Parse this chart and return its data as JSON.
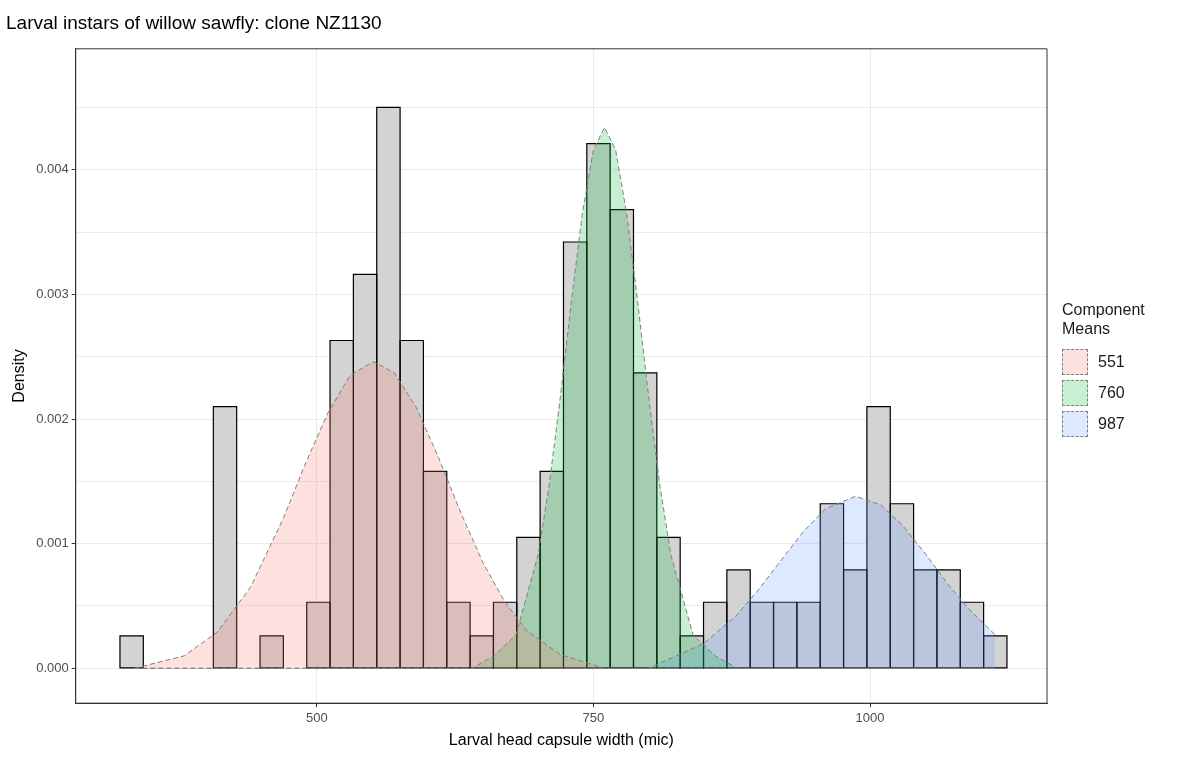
{
  "chart_data": {
    "type": "histogram",
    "title": "Larval instars of willow sawfly: clone NZ1130",
    "xlabel": "Larval head capsule width (mic)",
    "ylabel": "Density",
    "legend_title": "Component Means",
    "bins": [
      322,
      343.1,
      364.2,
      385.3,
      406.4,
      427.5,
      448.6,
      469.7,
      490.8,
      511.9,
      533,
      554.1,
      575.2,
      596.3,
      617.4,
      638.5,
      659.6,
      680.7,
      701.8,
      722.9,
      744,
      765.1,
      786.2,
      807.3,
      828.4,
      849.5,
      870.6,
      891.7,
      912.8,
      933.9,
      955,
      976.1,
      997.2,
      1018.3,
      1039.4,
      1060.5,
      1081.6,
      1102.7,
      1123.8
    ],
    "values": [
      0.00026,
      0,
      0,
      0,
      0.0021,
      0,
      0.00026,
      0,
      0.00053,
      0.00263,
      0.00316,
      0.0045,
      0.00263,
      0.00158,
      0.00053,
      0.00026,
      0.00053,
      0.00105,
      0.00158,
      0.00342,
      0.00421,
      0.00368,
      0.00237,
      0.00105,
      0.00026,
      0.00053,
      0.00079,
      0.00053,
      0.00053,
      0.00053,
      0.00132,
      0.00079,
      0.0021,
      0.00132,
      0.00079,
      0.00079,
      0.00053,
      0.00026
    ],
    "color": "#d3d3d3",
    "series": [
      {
        "type": "area",
        "name": "551",
        "color": "#f8766d",
        "line_style": "dashed",
        "x": [
          335,
          380,
          410,
          440,
          470,
          490,
          510,
          530,
          551,
          570,
          590,
          610,
          630,
          650,
          670,
          690,
          720,
          760,
          800,
          900,
          1000,
          1113
        ],
        "values": [
          0,
          0.0001,
          0.00029,
          0.00065,
          0.00121,
          0.00165,
          0.00205,
          0.00235,
          0.00246,
          0.00237,
          0.00209,
          0.00169,
          0.00125,
          0.00085,
          0.00053,
          0.0003,
          0.00011,
          0,
          0,
          0,
          0,
          0
        ]
      },
      {
        "type": "area",
        "name": "760",
        "color": "#00ba38",
        "line_style": "dashed",
        "x": [
          335,
          500,
          600,
          640,
          660,
          680,
          700,
          710,
          720,
          730,
          740,
          750,
          760,
          770,
          780,
          790,
          800,
          810,
          820,
          840,
          860,
          880,
          900,
          1000,
          1113
        ],
        "values": [
          0,
          0,
          0,
          0,
          0.0001,
          0.00027,
          0.00091,
          0.00147,
          0.00217,
          0.00294,
          0.00365,
          0.00416,
          0.00434,
          0.00416,
          0.00365,
          0.00294,
          0.00217,
          0.00147,
          0.00091,
          0.00027,
          0.0001,
          0,
          0,
          0,
          0
        ]
      },
      {
        "type": "area",
        "name": "987",
        "color": "#619cff",
        "line_style": "dashed",
        "x": [
          335,
          500,
          650,
          750,
          800,
          850,
          880,
          900,
          920,
          940,
          960,
          987,
          1010,
          1030,
          1050,
          1070,
          1090,
          1113
        ],
        "values": [
          0,
          0,
          0,
          0,
          0,
          0.0002,
          0.00043,
          0.00064,
          0.00087,
          0.0011,
          0.00128,
          0.00138,
          0.00131,
          0.00114,
          0.00092,
          0.00068,
          0.00047,
          0.00027
        ]
      }
    ],
    "xlim": [
      282,
      1160
    ],
    "xticks": [
      500,
      750,
      1000
    ],
    "ylim": [
      -0.00028,
      0.00497
    ],
    "yticks": [
      {
        "value": 0,
        "label": "0.000"
      },
      {
        "value": 0.0005,
        "label": null
      },
      {
        "value": 0.001,
        "label": "0.001"
      },
      {
        "value": 0.0015,
        "label": null
      },
      {
        "value": 0.002,
        "label": "0.002"
      },
      {
        "value": 0.0025,
        "label": null
      },
      {
        "value": 0.003,
        "label": "0.003"
      },
      {
        "value": 0.0035,
        "label": null
      },
      {
        "value": 0.004,
        "label": "0.004"
      },
      {
        "value": 0.0045,
        "label": null
      }
    ],
    "grid": true,
    "legend": "right"
  }
}
